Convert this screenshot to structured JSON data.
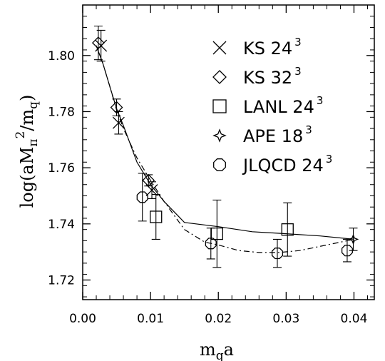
{
  "chart_data": {
    "type": "scatter",
    "xlabel": "m_q a",
    "ylabel": "log(aM_π^2/m_q)",
    "xlim": [
      0.0,
      0.043
    ],
    "ylim": [
      1.713,
      1.818
    ],
    "xticks": [
      0.0,
      0.01,
      0.02,
      0.03,
      0.04
    ],
    "xtick_labels": [
      "0.00",
      "0.01",
      "0.02",
      "0.03",
      "0.04"
    ],
    "yticks": [
      1.72,
      1.74,
      1.76,
      1.78,
      1.8
    ],
    "ytick_labels": [
      "1.72",
      "1.74",
      "1.76",
      "1.78",
      "1.80"
    ],
    "legend_position": "top-right",
    "series": [
      {
        "name": "KS 24",
        "name_sup": "3",
        "marker": "cross",
        "points": [
          {
            "x": 0.0027,
            "y": 1.8035,
            "err": 0.0055
          },
          {
            "x": 0.0053,
            "y": 1.776,
            "err": 0.004
          },
          {
            "x": 0.0102,
            "y": 1.752,
            "err": 0.003
          }
        ]
      },
      {
        "name": "KS 32",
        "name_sup": "3",
        "marker": "diamond",
        "points": [
          {
            "x": 0.0023,
            "y": 1.8045,
            "err": 0.006
          },
          {
            "x": 0.005,
            "y": 1.7815,
            "err": 0.003
          },
          {
            "x": 0.0097,
            "y": 1.7555,
            "err": 0.002
          }
        ]
      },
      {
        "name": "LANL 24",
        "name_sup": "3",
        "marker": "square",
        "points": [
          {
            "x": 0.0108,
            "y": 1.7425,
            "err": 0.008
          },
          {
            "x": 0.0198,
            "y": 1.7365,
            "err": 0.012
          },
          {
            "x": 0.0302,
            "y": 1.738,
            "err": 0.0095
          }
        ]
      },
      {
        "name": "APE 18",
        "name_sup": "3",
        "marker": "star",
        "points": [
          {
            "x": 0.0399,
            "y": 1.7345,
            "err": 0.004
          }
        ]
      },
      {
        "name": "JLQCD 24",
        "name_sup": "3",
        "marker": "octagon",
        "points": [
          {
            "x": 0.0088,
            "y": 1.7495,
            "err": 0.0085
          },
          {
            "x": 0.0189,
            "y": 1.733,
            "err": 0.0055
          },
          {
            "x": 0.0287,
            "y": 1.7295,
            "err": 0.005
          },
          {
            "x": 0.039,
            "y": 1.7305,
            "err": 0.004
          }
        ]
      }
    ],
    "fit_curves": [
      {
        "style": "solid",
        "x": [
          0.002,
          0.003,
          0.004,
          0.005,
          0.006,
          0.008,
          0.01,
          0.012,
          0.015,
          0.02,
          0.025,
          0.03,
          0.035,
          0.04
        ],
        "y": [
          1.8035,
          1.797,
          1.789,
          1.781,
          1.775,
          1.762,
          1.754,
          1.748,
          1.7405,
          1.739,
          1.7372,
          1.7365,
          1.7357,
          1.7345
        ]
      },
      {
        "style": "dash-dot",
        "x": [
          0.002,
          0.003,
          0.004,
          0.005,
          0.006,
          0.008,
          0.01,
          0.012,
          0.015,
          0.018,
          0.02,
          0.023,
          0.026,
          0.029,
          0.032,
          0.035,
          0.038,
          0.04
        ],
        "y": [
          1.8035,
          1.797,
          1.789,
          1.7805,
          1.774,
          1.7635,
          1.7555,
          1.748,
          1.738,
          1.7335,
          1.7325,
          1.7305,
          1.7298,
          1.7298,
          1.7305,
          1.732,
          1.7335,
          1.7345
        ]
      }
    ]
  }
}
